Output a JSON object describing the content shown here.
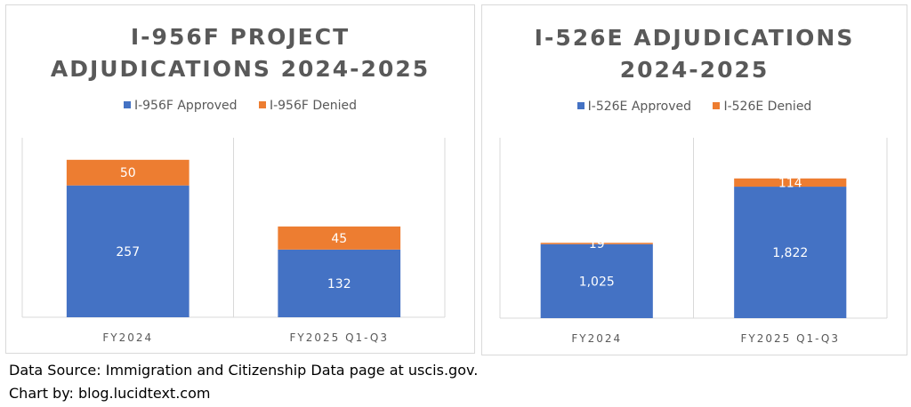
{
  "colors": {
    "approved": "#4472c4",
    "denied": "#ed7d31",
    "grid": "#d9d9d9",
    "axis_text": "#595959"
  },
  "chart_data": [
    {
      "type": "bar",
      "stacked": true,
      "title": "I-956F PROJECT ADJUDICATIONS 2024-2025",
      "title_lines": [
        "I-956F PROJECT",
        "ADJUDICATIONS 2024-2025"
      ],
      "categories": [
        "FY2024",
        "FY2025 Q1-Q3"
      ],
      "series": [
        {
          "name": "I-956F Approved",
          "values": [
            257,
            132
          ],
          "labels": [
            "257",
            "132"
          ]
        },
        {
          "name": "I-956F Denied",
          "values": [
            50,
            45
          ],
          "labels": [
            "50",
            "45"
          ]
        }
      ],
      "ylim": [
        0,
        350
      ],
      "legend": "top",
      "grid": "vertical category separators"
    },
    {
      "type": "bar",
      "stacked": true,
      "title": "I-526E ADJUDICATIONS 2024-2025",
      "title_lines": [
        "I-526E ADJUDICATIONS",
        "2024-2025"
      ],
      "categories": [
        "FY2024",
        "FY2025 Q1-Q3"
      ],
      "series": [
        {
          "name": "I-526E Approved",
          "values": [
            1025,
            1822
          ],
          "labels": [
            "1,025",
            "1,822"
          ]
        },
        {
          "name": "I-526E Denied",
          "values": [
            19,
            114
          ],
          "labels": [
            "19",
            "114"
          ]
        }
      ],
      "ylim": [
        0,
        2500
      ],
      "legend": "top",
      "grid": "vertical category separators"
    }
  ],
  "footer": {
    "source": "Data Source: Immigration and Citizenship Data page at uscis.gov.",
    "credit": "Chart by: blog.lucidtext.com"
  }
}
